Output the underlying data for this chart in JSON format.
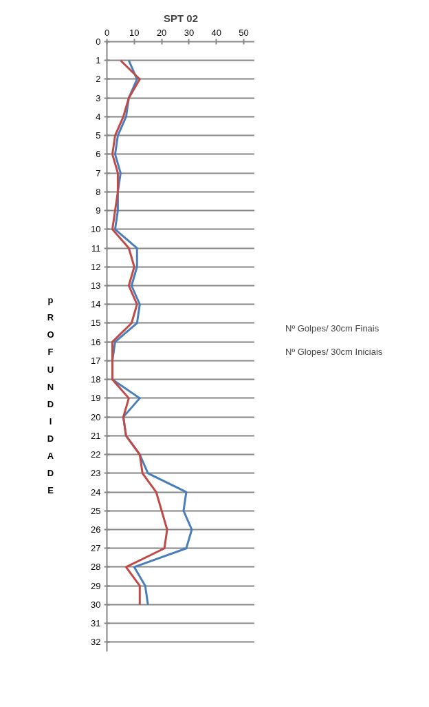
{
  "chart_data": {
    "type": "line",
    "title": "SPT 02",
    "ylabel": "pROFUNDIDADE",
    "x": [
      1,
      2,
      3,
      4,
      5,
      6,
      7,
      8,
      9,
      10,
      11,
      12,
      13,
      14,
      15,
      16,
      17,
      18,
      19,
      20,
      21,
      22,
      23,
      24,
      25,
      26,
      27,
      28,
      29,
      30
    ],
    "series": [
      {
        "name": "Nº Golpes/ 30cm Finais",
        "color": "#4a7ebb",
        "values": [
          8,
          11,
          8,
          7,
          4,
          3,
          5,
          4,
          4,
          3,
          11,
          11,
          9,
          12,
          11,
          3,
          2,
          2,
          12,
          6,
          7,
          12,
          15,
          29,
          28,
          31,
          29,
          10,
          14,
          15
        ]
      },
      {
        "name": "Nº Glopes/ 30cm Iniciais",
        "color": "#be4b48",
        "values": [
          5,
          12,
          8,
          6,
          3,
          2,
          4,
          4,
          3,
          2,
          8,
          10,
          8,
          11,
          9,
          2,
          2,
          2,
          8,
          6,
          7,
          12,
          13,
          18,
          20,
          22,
          21,
          7,
          12,
          12
        ]
      }
    ],
    "orientation": "horizontal",
    "xlim": [
      0,
      54
    ],
    "xticks": [
      0,
      10,
      20,
      30,
      40,
      50
    ],
    "ylim": [
      32.5,
      0
    ],
    "yticks": [
      0,
      1,
      2,
      3,
      4,
      5,
      6,
      7,
      8,
      9,
      10,
      11,
      12,
      13,
      14,
      15,
      16,
      17,
      18,
      19,
      20,
      21,
      22,
      23,
      24,
      25,
      26,
      27,
      28,
      29,
      30,
      31,
      32
    ],
    "grid": "y",
    "legend": "right",
    "marker": "none",
    "line_style": "solid"
  }
}
